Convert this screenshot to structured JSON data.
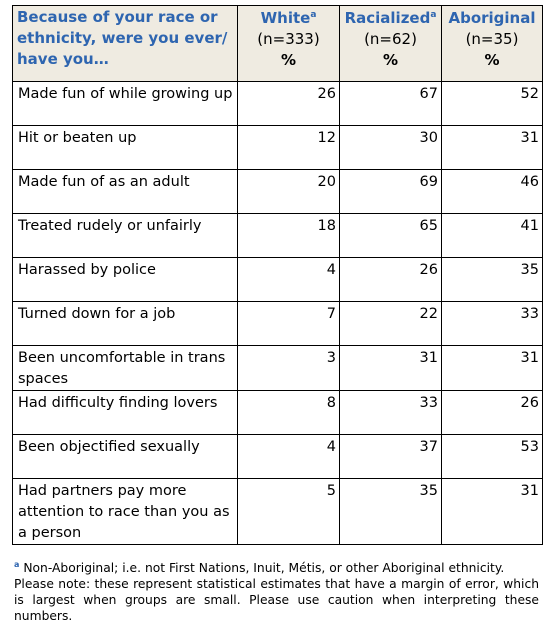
{
  "header": {
    "question": "Because of your race or ethnicity, were you ever/ have you…",
    "groups": [
      {
        "name": "White",
        "sup": "a",
        "n": "(n=333)",
        "unit": "%"
      },
      {
        "name": "Racialized",
        "sup": "a",
        "n": "(n=62)",
        "unit": "%"
      },
      {
        "name": "Aboriginal",
        "sup": "",
        "n": "(n=35)",
        "unit": "%"
      }
    ]
  },
  "rows": [
    {
      "label": "Made fun of while growing up",
      "values": [
        "26",
        "67",
        "52"
      ]
    },
    {
      "label": "Hit or beaten up",
      "values": [
        "12",
        "30",
        "31"
      ]
    },
    {
      "label": "Made fun of as an adult",
      "values": [
        "20",
        "69",
        "46"
      ]
    },
    {
      "label": "Treated rudely or unfairly",
      "values": [
        "18",
        "65",
        "41"
      ]
    },
    {
      "label": "Harassed by police",
      "values": [
        "4",
        "26",
        "35"
      ]
    },
    {
      "label": "Turned down for a job",
      "values": [
        "7",
        "22",
        "33"
      ]
    },
    {
      "label": "Been uncomfortable in trans spaces",
      "values": [
        "3",
        "31",
        "31"
      ]
    },
    {
      "label": "Had difficulty finding lovers",
      "values": [
        "8",
        "33",
        "26"
      ]
    },
    {
      "label": "Been objectified sexually",
      "values": [
        "4",
        "37",
        "53"
      ]
    },
    {
      "label": "Had partners pay more attention to race than you as a person",
      "values": [
        "5",
        "35",
        "31"
      ]
    }
  ],
  "footnote": {
    "marker": "a",
    "line1": " Non-Aboriginal; i.e. not First Nations, Inuit, Métis, or other Aboriginal ethnicity.",
    "line2": "Please note: these represent statistical estimates that have a margin of error, which is largest when groups are small. Please use caution when interpreting these numbers."
  },
  "colors": {
    "header_text": "#2e65b0",
    "header_bg": "#efebe1",
    "border": "#000000"
  }
}
